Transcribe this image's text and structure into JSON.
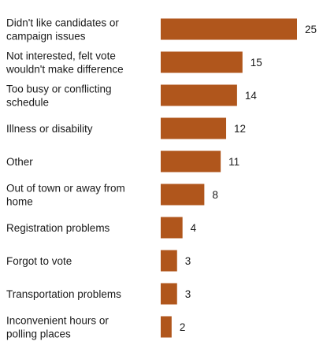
{
  "chart_data": {
    "type": "bar",
    "orientation": "horizontal",
    "categories": [
      [
        "Didn't like candidates or",
        "campaign issues"
      ],
      [
        "Not interested, felt vote",
        "wouldn't make difference"
      ],
      [
        "Too busy or conflicting",
        "schedule"
      ],
      [
        "Illness or disability"
      ],
      [
        "Other"
      ],
      [
        "Out of town or away from",
        "home"
      ],
      [
        "Registration problems"
      ],
      [
        "Forgot to vote"
      ],
      [
        "Transportation problems"
      ],
      [
        "Inconvenient hours or",
        "polling places"
      ]
    ],
    "values": [
      25,
      15,
      14,
      12,
      11,
      8,
      4,
      3,
      3,
      2
    ],
    "value_labels": [
      "25",
      "15",
      "14",
      "12",
      "11",
      "8",
      "4",
      "3",
      "3",
      "2"
    ],
    "bar_color": "#b0561c",
    "grid": false,
    "legend": "none"
  }
}
